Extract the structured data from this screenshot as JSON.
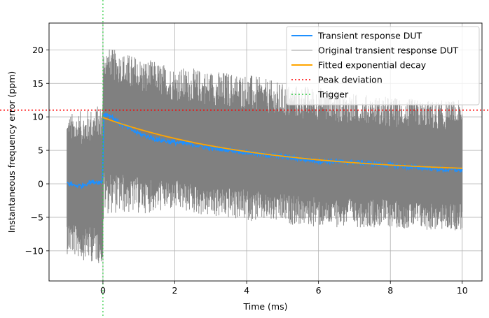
{
  "chart_data": {
    "type": "line",
    "title": "",
    "xlabel": "Time (ms)",
    "ylabel": "Instantaneous frequency error (ppm)",
    "xlim": [
      -1.5,
      10.55
    ],
    "ylim": [
      -14.5,
      24
    ],
    "x_ticks": [
      0,
      2,
      4,
      6,
      8,
      10
    ],
    "y_ticks": [
      -10,
      -5,
      0,
      5,
      10,
      15,
      20
    ],
    "x_tick_labels": [
      "0",
      "2",
      "4",
      "6",
      "8",
      "10"
    ],
    "y_tick_labels": [
      "−10",
      "−5",
      "0",
      "5",
      "10",
      "15",
      "20"
    ],
    "grid": true,
    "legend_position": "top-right",
    "series": [
      {
        "name": "Transient response DUT",
        "color": "#1e90ff",
        "x": [
          -1,
          -0.8,
          -0.6,
          -0.4,
          -0.2,
          -0.02,
          0,
          0.02,
          0.2,
          0.5,
          1.0,
          1.5,
          2.0,
          2.5,
          3.0,
          3.5,
          4.0,
          4.5,
          5.0,
          5.5,
          6.0,
          6.5,
          7.0,
          7.5,
          8.0,
          8.5,
          9.0,
          9.5,
          10.0
        ],
        "y": [
          0.1,
          -0.2,
          -0.3,
          0.2,
          0.3,
          0.2,
          2.0,
          10.5,
          10.2,
          8.9,
          7.5,
          6.6,
          6.2,
          5.9,
          5.3,
          5.1,
          4.7,
          4.3,
          4.1,
          3.7,
          3.4,
          3.3,
          3.2,
          3.0,
          2.8,
          2.5,
          2.4,
          2.1,
          2.1
        ]
      },
      {
        "name": "Original transient response DUT",
        "color": "#808080",
        "x": [
          -1,
          -0.5,
          -0.02,
          0.0,
          0.02,
          1,
          2,
          3,
          4,
          5,
          6,
          7,
          8,
          9,
          10
        ],
        "y_upper": [
          10.5,
          11.0,
          12.0,
          14.0,
          20.5,
          19.0,
          17.5,
          17.0,
          16.5,
          15.0,
          14.5,
          13.5,
          13.0,
          12.5,
          12.5
        ],
        "y_lower": [
          -10.5,
          -11.5,
          -12.0,
          -12.5,
          -4.5,
          -4.5,
          -4.0,
          -5.0,
          -5.5,
          -6.0,
          -6.5,
          -6.5,
          -6.5,
          -7.0,
          -7.0
        ]
      },
      {
        "name": "Fitted exponential decay",
        "color": "#ffa500",
        "function": "y = 8.4 * exp(-x / 4.3) + 1.5",
        "x_range": [
          0,
          10
        ]
      },
      {
        "name": "Peak deviation",
        "color": "#ff0000",
        "style": "dotted",
        "y": 11.0
      },
      {
        "name": "Trigger",
        "color": "#2ecc40",
        "style": "dotted",
        "x": 0
      }
    ]
  }
}
